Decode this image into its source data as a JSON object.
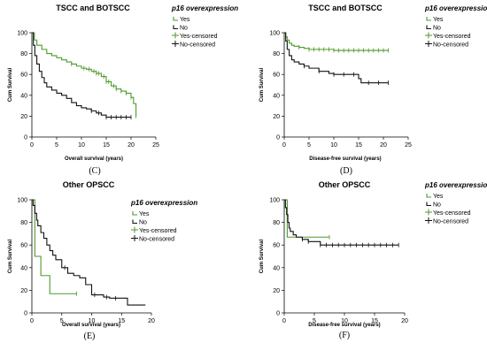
{
  "colors": {
    "yes": "#4e9a2b",
    "no": "#111111",
    "axis": "#000000"
  },
  "legend": {
    "title": "p16 overexpression",
    "items": [
      {
        "label": "Yes",
        "key": "yes",
        "kind": "step"
      },
      {
        "label": "No",
        "key": "no",
        "kind": "step"
      },
      {
        "label": "Yes-censored",
        "key": "yes",
        "kind": "censor"
      },
      {
        "label": "No-censored",
        "key": "no",
        "kind": "censor"
      }
    ]
  },
  "chart_data": [
    {
      "type": "line",
      "panel_label": "(C)",
      "title": "TSCC and BOTSCC",
      "xlabel": "Overall survival (years)",
      "ylabel": "Cum Survival",
      "xlim": [
        0,
        25
      ],
      "ylim": [
        0,
        100
      ],
      "xticks": [
        0,
        5,
        10,
        15,
        20,
        25
      ],
      "yticks": [
        0,
        20,
        40,
        60,
        80,
        100
      ],
      "legend_position": "top-right",
      "series": [
        {
          "name": "Yes",
          "color_key": "yes",
          "x": [
            0,
            0.5,
            1,
            2,
            3,
            4,
            5,
            6,
            7,
            8,
            9,
            10,
            11,
            12,
            13,
            14,
            15,
            16,
            17,
            18,
            19,
            20,
            20.5,
            21
          ],
          "y": [
            100,
            93,
            88,
            84,
            80,
            78,
            76,
            74,
            72,
            70,
            68,
            66,
            65,
            63,
            61,
            58,
            53,
            49,
            46,
            44,
            42,
            38,
            32,
            20
          ],
          "censor_x": [
            8,
            10.5,
            11.5,
            12.5,
            13,
            13.5,
            14.5,
            15,
            15.5,
            16.5,
            17,
            18,
            19,
            20,
            21
          ]
        },
        {
          "name": "No",
          "color_key": "no",
          "x": [
            0,
            0.3,
            0.6,
            1,
            1.5,
            2,
            2.5,
            3,
            4,
            5,
            6,
            7,
            8,
            9,
            10,
            11,
            12,
            13,
            14,
            15,
            17,
            20
          ],
          "y": [
            100,
            88,
            78,
            70,
            63,
            57,
            52,
            48,
            45,
            42,
            40,
            37,
            33,
            30,
            28,
            27,
            25,
            23,
            21,
            19,
            19,
            19
          ],
          "censor_x": [
            12,
            13.5,
            15,
            16,
            17,
            18,
            19,
            20
          ]
        }
      ]
    },
    {
      "type": "line",
      "panel_label": "(D)",
      "title": "TSCC and BOTSCC",
      "xlabel": "Disease-free survival (years)",
      "ylabel": "Cum Survival",
      "xlim": [
        0,
        25
      ],
      "ylim": [
        0,
        100
      ],
      "xticks": [
        0,
        5,
        10,
        15,
        20,
        25
      ],
      "yticks": [
        0,
        20,
        40,
        60,
        80,
        100
      ],
      "legend_position": "top-right",
      "series": [
        {
          "name": "Yes",
          "color_key": "yes",
          "x": [
            0,
            0.3,
            0.6,
            1,
            1.5,
            2,
            3,
            4,
            5,
            7,
            10,
            12,
            15,
            21
          ],
          "y": [
            100,
            96,
            93,
            90,
            88,
            87,
            86,
            85,
            84,
            84,
            83,
            83,
            83,
            83
          ],
          "censor_x": [
            3,
            5,
            6,
            7,
            8,
            9,
            10,
            11,
            12,
            13,
            14,
            15,
            16,
            17,
            18,
            19,
            20,
            21
          ]
        },
        {
          "name": "No",
          "color_key": "no",
          "x": [
            0,
            0.3,
            0.6,
            1,
            1.5,
            2,
            3,
            4,
            5,
            7,
            9,
            10,
            12,
            15,
            15.5,
            21
          ],
          "y": [
            100,
            92,
            84,
            78,
            74,
            72,
            70,
            68,
            66,
            63,
            61,
            60,
            60,
            56,
            52,
            52
          ],
          "censor_x": [
            4,
            7,
            10,
            12,
            14,
            17,
            19,
            21
          ]
        }
      ]
    },
    {
      "type": "line",
      "panel_label": "(E)",
      "title": "Other OPSCC",
      "xlabel": "Overall survival (years)",
      "ylabel": "Cum Survival",
      "xlim": [
        0,
        20
      ],
      "ylim": [
        0,
        100
      ],
      "xticks": [
        0,
        5,
        10,
        15,
        20
      ],
      "yticks": [
        0,
        20,
        40,
        60,
        80,
        100
      ],
      "legend_position": "top-right",
      "series": [
        {
          "name": "Yes",
          "color_key": "yes",
          "x": [
            0,
            0.5,
            1.5,
            3,
            7.5
          ],
          "y": [
            100,
            50,
            33,
            17,
            17
          ],
          "censor_x": [
            7.5
          ]
        },
        {
          "name": "No",
          "color_key": "no",
          "x": [
            0,
            0.2,
            0.5,
            0.8,
            1,
            1.5,
            2,
            2.5,
            3,
            3.5,
            4,
            5,
            6,
            7,
            8,
            9,
            10,
            12,
            13,
            16,
            19
          ],
          "y": [
            100,
            95,
            88,
            82,
            77,
            71,
            66,
            60,
            55,
            51,
            47,
            40,
            35,
            33,
            31,
            25,
            16,
            14,
            13,
            7,
            7
          ],
          "censor_x": [
            5.5,
            10.5,
            12.5,
            14
          ]
        }
      ]
    },
    {
      "type": "line",
      "panel_label": "(F)",
      "title": "Other OPSCC",
      "xlabel": "Disease-free survival (years)",
      "ylabel": "Cum Survival",
      "xlim": [
        0,
        20
      ],
      "ylim": [
        0,
        100
      ],
      "xticks": [
        0,
        5,
        10,
        15,
        20
      ],
      "yticks": [
        0,
        20,
        40,
        60,
        80,
        100
      ],
      "legend_position": "top-right",
      "series": [
        {
          "name": "Yes",
          "color_key": "yes",
          "x": [
            0,
            0.5,
            7.5
          ],
          "y": [
            100,
            67,
            67
          ],
          "censor_x": [
            7.5
          ]
        },
        {
          "name": "No",
          "color_key": "no",
          "x": [
            0,
            0.2,
            0.4,
            0.6,
            0.8,
            1,
            1.5,
            2,
            3,
            4,
            6,
            19
          ],
          "y": [
            100,
            93,
            87,
            80,
            75,
            72,
            69,
            67,
            65,
            63,
            60,
            60
          ],
          "censor_x": [
            3,
            4,
            6,
            7,
            8,
            9,
            10,
            11,
            12,
            13,
            14,
            15,
            16,
            17,
            18,
            19
          ]
        }
      ]
    }
  ]
}
